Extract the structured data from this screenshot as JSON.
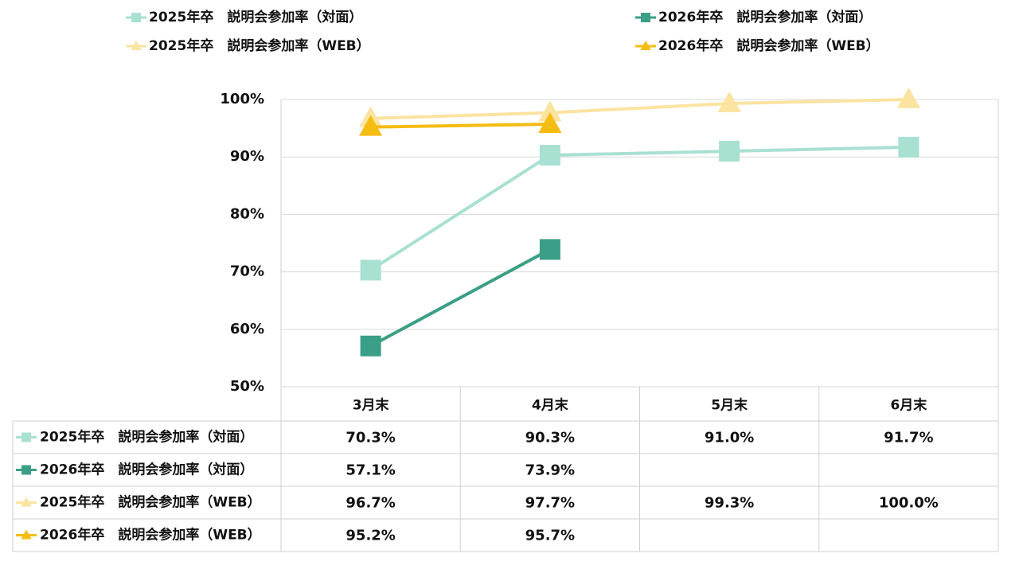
{
  "chart_data": {
    "type": "line",
    "categories": [
      "3月末",
      "4月末",
      "5月末",
      "6月末"
    ],
    "ylim": [
      0.5,
      1.0
    ],
    "yticks": [
      {
        "value": 1.0,
        "label": "100%"
      },
      {
        "value": 0.9,
        "label": "90%"
      },
      {
        "value": 0.8,
        "label": "80%"
      },
      {
        "value": 0.7,
        "label": "70%"
      },
      {
        "value": 0.6,
        "label": "60%"
      },
      {
        "value": 0.5,
        "label": "50%"
      }
    ],
    "grid": true,
    "legend_placement": "top",
    "series": [
      {
        "name": "2025年卒　説明会参加率（対面）",
        "marker": "square",
        "color": "#A8E0D2",
        "values": [
          0.703,
          0.903,
          0.91,
          0.917
        ],
        "labels": [
          "70.3%",
          "90.3%",
          "91.0%",
          "91.7%"
        ]
      },
      {
        "name": "2026年卒　説明会参加率（対面）",
        "marker": "square",
        "color": "#3A9F86",
        "values": [
          0.571,
          0.739,
          null,
          null
        ],
        "labels": [
          "57.1%",
          "73.9%",
          "",
          ""
        ]
      },
      {
        "name": "2025年卒　説明会参加率（WEB）",
        "marker": "triangle",
        "color": "#FBE3A0",
        "values": [
          0.967,
          0.977,
          0.993,
          1.0
        ],
        "labels": [
          "96.7%",
          "97.7%",
          "99.3%",
          "100.0%"
        ]
      },
      {
        "name": "2026年卒　説明会参加率（WEB）",
        "marker": "triangle",
        "color": "#F5BC12",
        "values": [
          0.952,
          0.957,
          null,
          null
        ],
        "labels": [
          "95.2%",
          "95.7%",
          "",
          ""
        ]
      }
    ]
  }
}
